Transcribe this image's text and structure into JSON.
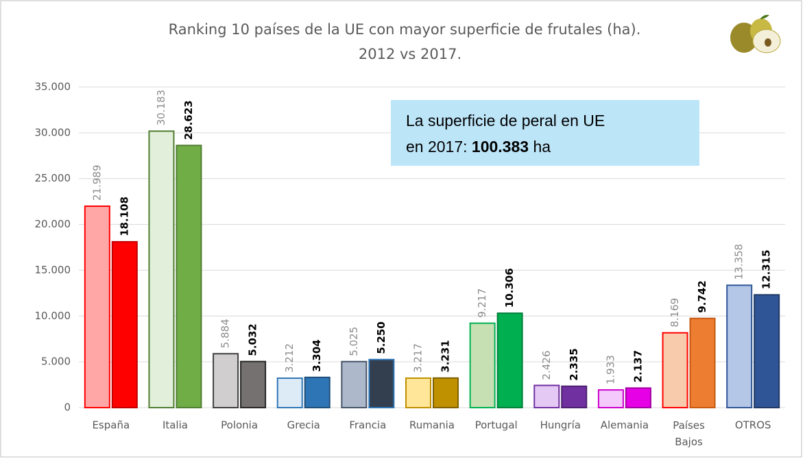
{
  "chart_data": {
    "type": "bar",
    "title": "Ranking 10 países de la UE con mayor superficie de frutales (ha).",
    "subtitle": "2012 vs 2017.",
    "categories": [
      "España",
      "Italia",
      "Polonia",
      "Grecia",
      "Francia",
      "Rumania",
      "Portugal",
      "Hungría",
      "Alemania",
      "Países Bajos",
      "OTROS"
    ],
    "series": [
      {
        "colors": [
          "#ffa6a6",
          "#e2efda",
          "#d0cece",
          "#ddebf7",
          "#adb9ca",
          "#ffe699",
          "#c6e0b4",
          "#e4c9f5",
          "#f4c9fb",
          "#f8cbad",
          "#b4c7e7"
        ],
        "outline_colors": [
          "#ff0000",
          "#507e32",
          "#404040",
          "#2e75b6",
          "#44546a",
          "#bf9000",
          "#00b050",
          "#7030a0",
          "#cc00cc",
          "#ff0000",
          "#2f5597"
        ],
        "values": [
          21989,
          30183,
          5884,
          3212,
          5025,
          3217,
          9217,
          2426,
          1933,
          8169,
          13358
        ],
        "value_labels": [
          "21.989",
          "30.183",
          "5.884",
          "3.212",
          "5.025",
          "3.217",
          "9.217",
          "2.426",
          "1.933",
          "8.169",
          "13.358"
        ]
      },
      {
        "colors": [
          "#ff0000",
          "#70ad47",
          "#767171",
          "#2e75b6",
          "#333f4f",
          "#bf9000",
          "#00b050",
          "#7030a0",
          "#e600e6",
          "#ed7d31",
          "#2f5597"
        ],
        "outline_colors": [
          "#c00000",
          "#507e32",
          "#262626",
          "#1f4e79",
          "#2e75b6",
          "#7f6000",
          "#00803a",
          "#4b1f6f",
          "#a000a0",
          "#c55a11",
          "#1f3864"
        ],
        "values": [
          18108,
          28623,
          5032,
          3304,
          5250,
          3231,
          10306,
          2335,
          2137,
          9742,
          12315
        ],
        "value_labels": [
          "18.108",
          "28.623",
          "5.032",
          "3.304",
          "5.250",
          "3.231",
          "10.306",
          "2.335",
          "2.137",
          "9.742",
          "12.315"
        ]
      }
    ],
    "ylim": [
      0,
      35000
    ],
    "yticks": [
      0,
      {
        "value": 5000,
        "label": "5.000"
      },
      {
        "value": 10000,
        "label": "10.000"
      },
      {
        "value": 15000,
        "label": "15.000"
      },
      {
        "value": 20000,
        "label": "20.000"
      },
      {
        "value": 25000,
        "label": "25.000"
      },
      {
        "value": 30000,
        "label": "30.000"
      },
      {
        "value": 35000,
        "label": "35.000"
      }
    ],
    "grid": true,
    "annotation": {
      "line1": "La superficie de peral en UE",
      "line2_prefix": "en 2017:",
      "highlight": "100.383",
      "suffix": "ha"
    }
  }
}
